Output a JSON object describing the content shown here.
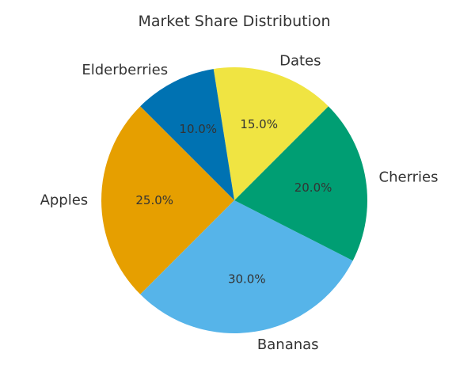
{
  "chart_data": {
    "type": "pie",
    "title": "Market Share Distribution",
    "start_angle_deg": 135,
    "direction": "counterclockwise",
    "slices": [
      {
        "label": "Apples",
        "value": 25.0,
        "pct_label": "25.0%",
        "color": "#E69F00"
      },
      {
        "label": "Bananas",
        "value": 30.0,
        "pct_label": "30.0%",
        "color": "#56B4E9"
      },
      {
        "label": "Cherries",
        "value": 20.0,
        "pct_label": "20.0%",
        "color": "#009E73"
      },
      {
        "label": "Dates",
        "value": 15.0,
        "pct_label": "15.0%",
        "color": "#F0E442"
      },
      {
        "label": "Elderberries",
        "value": 10.0,
        "pct_label": "10.0%",
        "color": "#0072B2"
      }
    ]
  }
}
